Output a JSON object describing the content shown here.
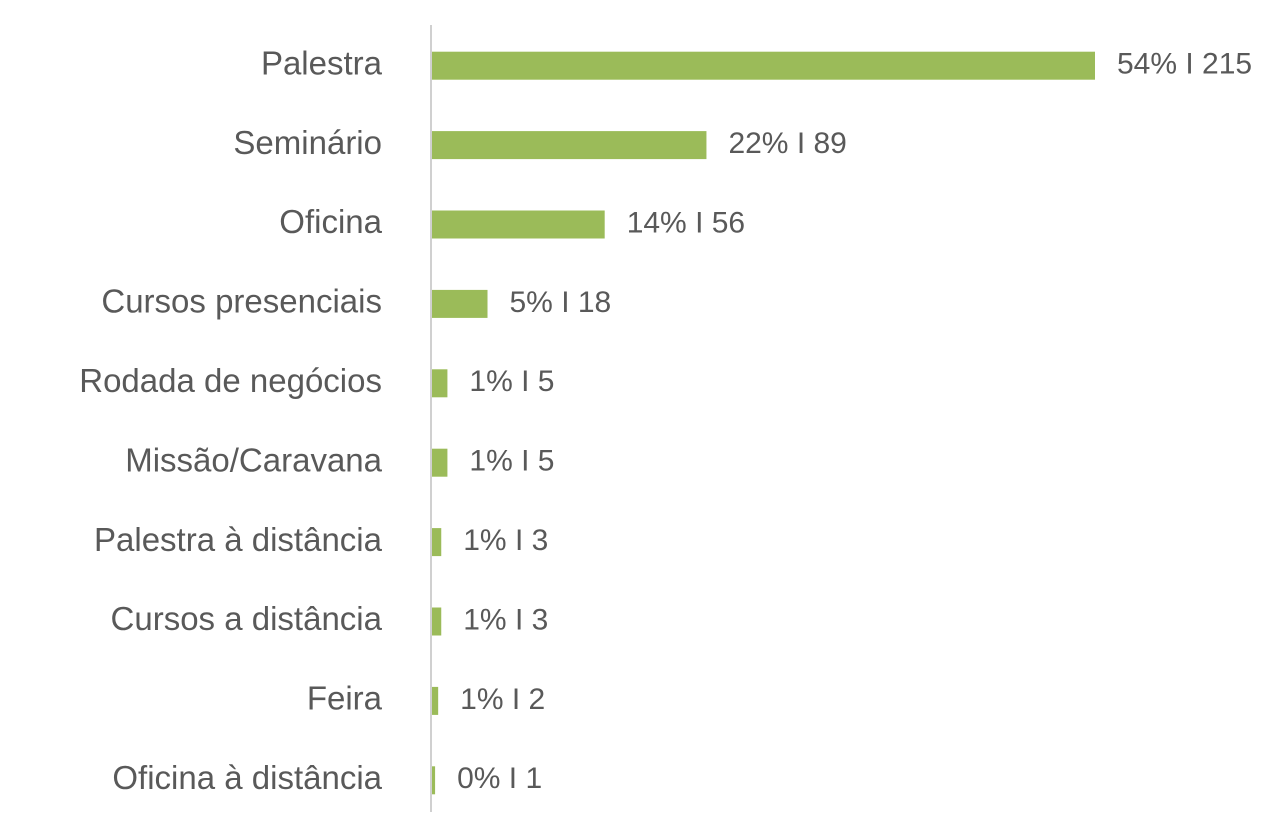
{
  "chart_data": {
    "type": "bar",
    "orientation": "horizontal",
    "categories": [
      "Palestra",
      "Seminário",
      "Oficina",
      "Cursos presenciais",
      "Rodada de negócios",
      "Missão/Caravana",
      "Palestra à distância",
      "Cursos a distância",
      "Feira",
      "Oficina à distância"
    ],
    "values": [
      215,
      89,
      56,
      18,
      5,
      5,
      3,
      3,
      2,
      1
    ],
    "value_labels": [
      "54% I 215",
      "22% I 89",
      "14% I 56",
      "5% I 18",
      "1% I 5",
      "1% I 5",
      "1% I 3",
      "1% I 3",
      "1% I 2",
      "0% I 1"
    ],
    "color": "#9bbb59"
  }
}
